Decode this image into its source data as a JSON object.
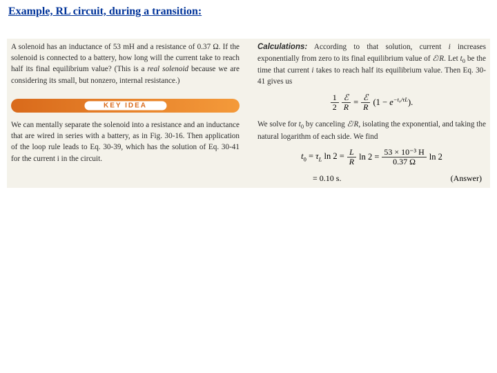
{
  "heading": "Example, RL circuit, during a transition:",
  "left": {
    "problem_html": "A solenoid has an inductance of 53 mH and a resistance of 0.37 Ω. If the solenoid is connected to a battery, how long will the current take to reach half its final equilibrium value? (This is a <i>real solenoid</i> because we are considering its small, but nonzero, internal resistance.)",
    "keyidea_label": "KEY IDEA",
    "idea_text": "We can mentally separate the solenoid into a resistance and an inductance that are wired in series with a battery, as in Fig. 30-16. Then application of the loop rule leads to Eq. 30-39, which has the solution of Eq. 30-41 for the current i in the circuit."
  },
  "right": {
    "calc_label": "Calculations:",
    "calc_intro": "According to that solution, current i increases exponentially from zero to its final equilibrium value of ℰ/R. Let t₀ be the time that current i takes to reach half its equilibrium value. Then Eq. 30-41 gives us",
    "eq1_lhs_top": "1",
    "eq1_lhs_bot": "2",
    "eq1_mid_top": "ℰ",
    "eq1_mid_bot": "R",
    "eq1_rhs_top": "ℰ",
    "eq1_rhs_bot": "R",
    "eq1_tail": "(1 − e",
    "eq1_exp": "−t₀/τL",
    "eq1_close": ").",
    "between": "We solve for t₀ by canceling ℰ/R, isolating the exponential, and taking the natural logarithm of each side. We find",
    "eq2_lead": "t₀ = τL ln 2 =",
    "eq2_frac_top": "L",
    "eq2_frac_bot": "R",
    "eq2_mid": "ln 2 =",
    "eq2_num_top": "53 × 10⁻³ H",
    "eq2_num_bot": "0.37 Ω",
    "eq2_tail": "ln 2",
    "eq2_answer": "= 0.10 s.",
    "answer_label": "(Answer)"
  },
  "colors": {
    "heading": "#003399",
    "keyidea_grad_from": "#d96a1b",
    "keyidea_grad_to": "#f49a3a",
    "panel_bg": "#f4f2ea"
  }
}
